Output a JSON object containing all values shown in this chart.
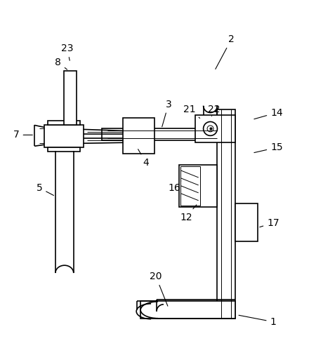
{
  "bg_color": "#ffffff",
  "line_color": "#000000",
  "lw": 1.2,
  "tlw": 0.7,
  "fig_width": 4.5,
  "fig_height": 4.96,
  "dpi": 100
}
